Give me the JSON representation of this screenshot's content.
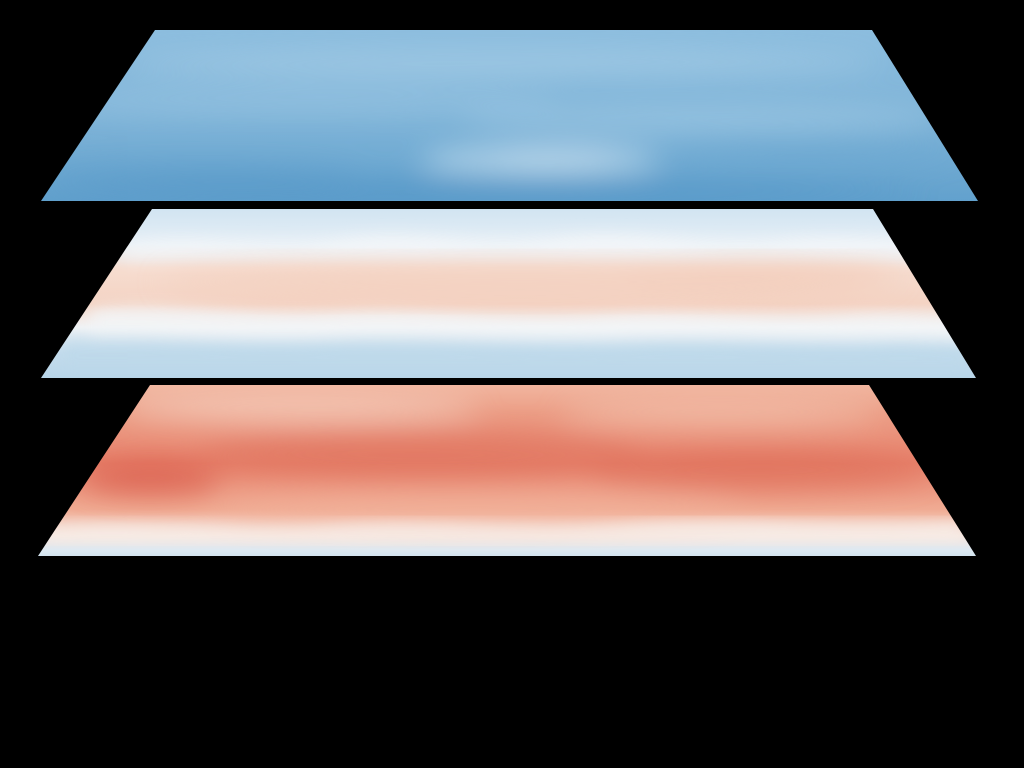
{
  "background": "#000000",
  "layers": [
    {
      "name": "top-layer",
      "tone": "cool",
      "colors": {
        "base": "#7fb4d8",
        "light": "#c9e2f1",
        "mid": "#8fc0de",
        "dark": "#4a90c4",
        "highlight": "#eef5fa"
      }
    },
    {
      "name": "middle-layer",
      "tone": "mixed",
      "colors": {
        "blue": "#a9cde6",
        "pale_blue": "#d8e9f4",
        "white": "#f4f6f8",
        "pink": "#f6d6c8",
        "peach": "#f3c9b6"
      }
    },
    {
      "name": "bottom-layer",
      "tone": "warm",
      "colors": {
        "red": "#e06f5c",
        "salmon": "#ec9a82",
        "peach": "#f5c2ad",
        "white": "#f7efea",
        "blue": "#bcd8ea"
      }
    }
  ]
}
